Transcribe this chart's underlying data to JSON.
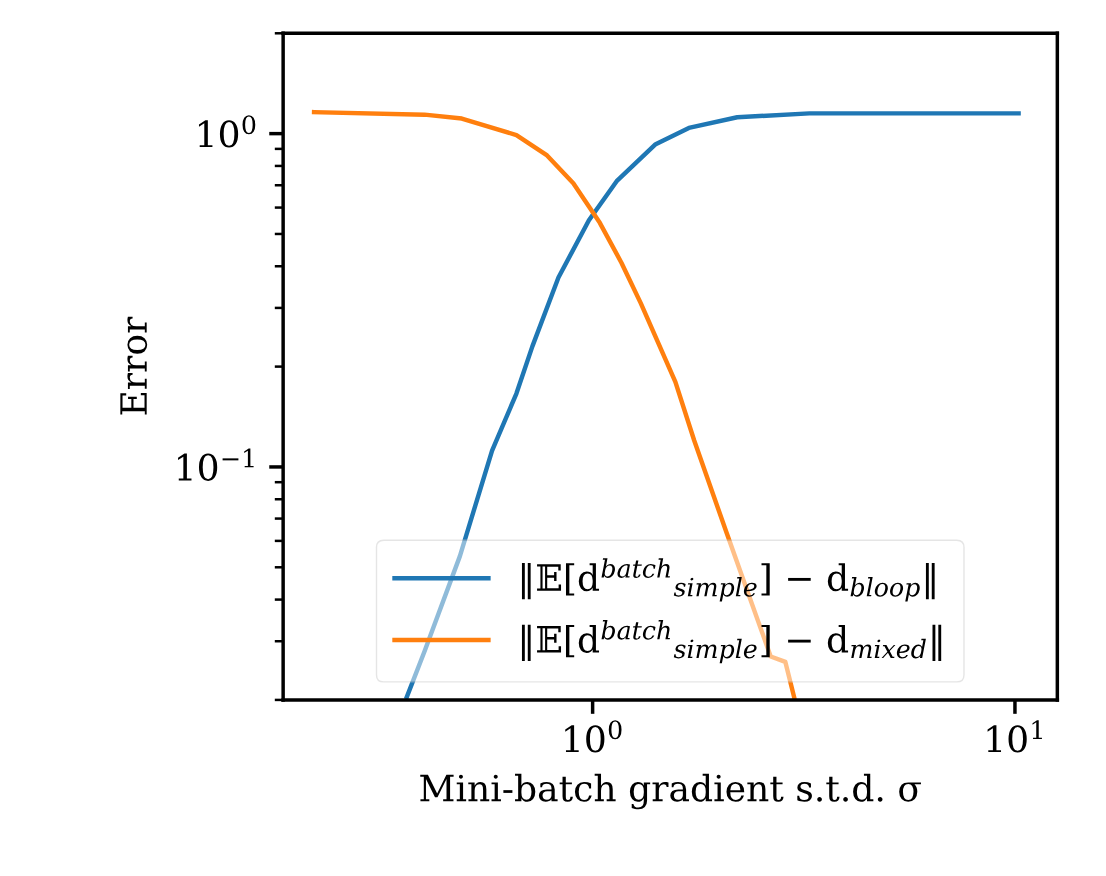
{
  "chart_data": {
    "type": "line",
    "xlabel": "Mini-batch gradient s.t.d. σ",
    "ylabel": "Error",
    "log": "xy",
    "xlim": [
      0.185,
      12.6
    ],
    "ylim": [
      0.02,
      2
    ],
    "xticks": [
      {
        "value": 1,
        "label": "10$^{0}$"
      },
      {
        "value": 10,
        "label": "10$^{1}$"
      }
    ],
    "yticks": [
      {
        "value": 0.1,
        "label": "10$^{−1}$"
      },
      {
        "value": 1,
        "label": "10$^{0}$"
      }
    ],
    "grid": false,
    "legend": "bottom",
    "marker": "none",
    "line_style": "solid",
    "series": [
      {
        "name": "‖𝔼[d$^{batch}$$_{simple}$] − d$_{bloop}$‖",
        "color": "#1f77b4",
        "x": [
          0.363,
          0.4,
          0.485,
          0.578,
          0.66,
          0.72,
          0.83,
          0.98,
          1.14,
          1.41,
          1.69,
          2.2,
          3.26,
          10.2
        ],
        "values": [
          0.0204,
          0.028,
          0.054,
          0.112,
          0.166,
          0.23,
          0.37,
          0.55,
          0.72,
          0.93,
          1.04,
          1.12,
          1.15,
          1.15
        ]
      },
      {
        "name": "‖𝔼[d$^{batch}$$_{simple}$] − d$_{mixed}$‖",
        "color": "#ff7f0e",
        "x": [
          0.219,
          0.4,
          0.49,
          0.66,
          0.78,
          0.9,
          1.04,
          1.17,
          1.3,
          1.57,
          1.74,
          2.08,
          2.64,
          2.86,
          3.0
        ],
        "values": [
          1.16,
          1.14,
          1.11,
          0.99,
          0.86,
          0.71,
          0.54,
          0.41,
          0.31,
          0.18,
          0.12,
          0.063,
          0.027,
          0.026,
          0.0204
        ]
      }
    ]
  }
}
